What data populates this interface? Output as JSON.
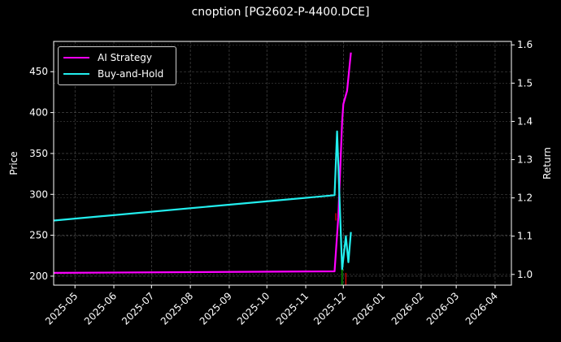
{
  "title": "cnoption [PG2602-P-4400.DCE]",
  "chart_data": {
    "type": "line",
    "title": "cnoption [PG2602-P-4400.DCE]",
    "xlabel": "",
    "ylabel": "Price",
    "y2label": "Return",
    "grid": true,
    "legend_position": "upper left",
    "x_ticks": [
      "2025-05",
      "2025-06",
      "2025-07",
      "2025-08",
      "2025-09",
      "2025-10",
      "2025-11",
      "2025-12",
      "2026-01",
      "2026-02",
      "2026-03",
      "2026-04"
    ],
    "y_ticks": [
      200,
      250,
      300,
      350,
      400,
      450
    ],
    "y2_ticks": [
      1.0,
      1.1,
      1.2,
      1.3,
      1.4,
      1.5,
      1.6
    ],
    "xlim": [
      "2025-04-14",
      "2026-04-14"
    ],
    "ylim": [
      189,
      487
    ],
    "y2lim": [
      0.972,
      1.609
    ],
    "series": [
      {
        "name": "AI Strategy",
        "axis": "right",
        "color": "#ff00ff",
        "points": [
          [
            "2025-04-14",
            1.004
          ],
          [
            "2025-11-24",
            1.008
          ],
          [
            "2025-11-27",
            1.15
          ],
          [
            "2025-11-30",
            1.4
          ],
          [
            "2025-12-01",
            1.445
          ],
          [
            "2025-12-04",
            1.48
          ],
          [
            "2025-12-07",
            1.58
          ]
        ]
      },
      {
        "name": "Buy-and-Hold",
        "axis": "left",
        "color": "#22eeee",
        "points": [
          [
            "2025-04-14",
            268
          ],
          [
            "2025-11-24",
            299
          ],
          [
            "2025-11-26",
            377
          ],
          [
            "2025-11-30",
            208
          ],
          [
            "2025-12-03",
            249
          ],
          [
            "2025-12-05",
            217
          ],
          [
            "2025-12-07",
            254
          ]
        ]
      }
    ],
    "markers": [
      {
        "type": "sell",
        "color": "#dd0000",
        "date": "2025-11-25",
        "y_price_range": [
          268,
          277
        ]
      },
      {
        "type": "buy",
        "color": "#00aa00",
        "date": "2025-11-30",
        "y_price_range": [
          189,
          208
        ]
      },
      {
        "type": "sell",
        "color": "#dd0000",
        "date": "2025-12-03",
        "y_price_range": [
          189,
          204
        ]
      }
    ]
  },
  "legend": [
    {
      "label": "AI Strategy",
      "color": "#ff00ff"
    },
    {
      "label": "Buy-and-Hold",
      "color": "#22eeee"
    }
  ]
}
